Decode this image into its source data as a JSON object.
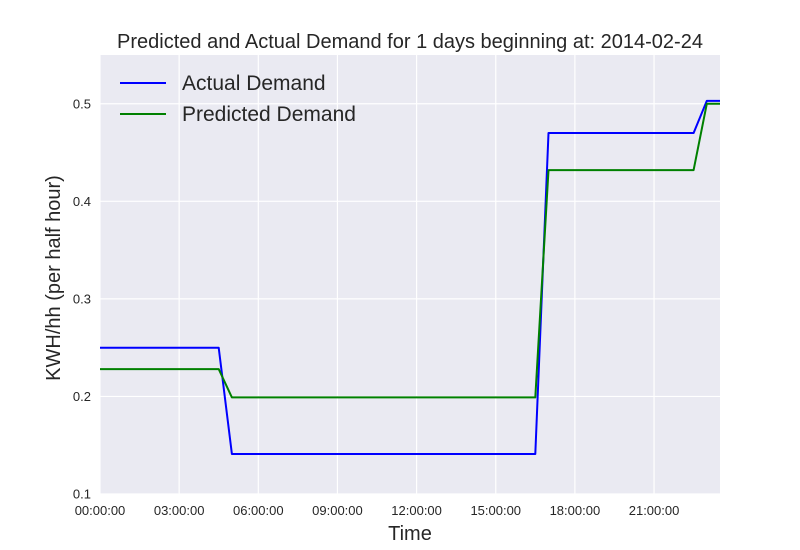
{
  "chart_data": {
    "type": "line",
    "title": "Predicted and Actual Demand for 1 days beginning at: 2014-02-24",
    "xlabel": "Time",
    "ylabel": "KWH/hh (per half hour)",
    "x_unit": "hours since 00:00:00",
    "xlim": [
      0,
      23.5
    ],
    "ylim": [
      0.1,
      0.55
    ],
    "xticks": [
      0,
      3,
      6,
      9,
      12,
      15,
      18,
      21
    ],
    "xtick_labels": [
      "00:00:00",
      "03:00:00",
      "06:00:00",
      "09:00:00",
      "12:00:00",
      "15:00:00",
      "18:00:00",
      "21:00:00"
    ],
    "yticks": [
      0.1,
      0.2,
      0.3,
      0.4,
      0.5
    ],
    "ytick_labels": [
      "0.1",
      "0.2",
      "0.3",
      "0.4",
      "0.5"
    ],
    "grid": true,
    "legend_position": "top-left",
    "background": "#eaeaf2",
    "series": [
      {
        "name": "Actual Demand",
        "color": "#0000ff",
        "x": [
          0,
          4.5,
          5.0,
          16.5,
          17.0,
          22.5,
          23.0,
          23.5
        ],
        "y": [
          0.25,
          0.25,
          0.141,
          0.141,
          0.47,
          0.47,
          0.503,
          0.503
        ]
      },
      {
        "name": "Predicted Demand",
        "color": "#008000",
        "x": [
          0,
          4.5,
          5.0,
          16.5,
          17.0,
          22.5,
          23.0,
          23.5
        ],
        "y": [
          0.228,
          0.228,
          0.199,
          0.199,
          0.432,
          0.432,
          0.5,
          0.5
        ]
      }
    ]
  }
}
